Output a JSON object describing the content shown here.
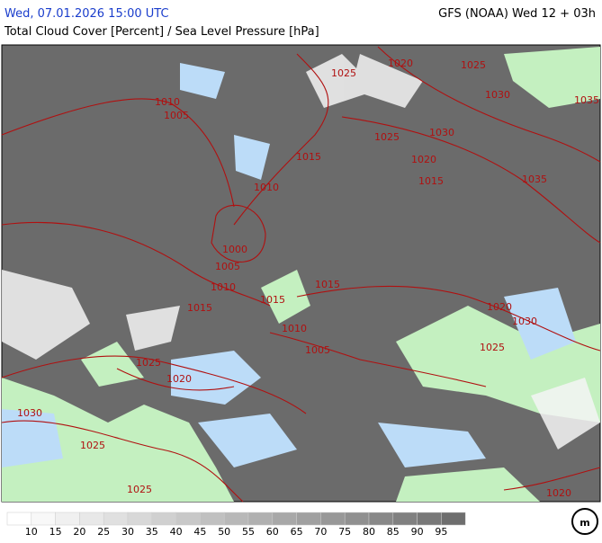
{
  "header": {
    "left": "Wed, 07.01.2026 15:00 UTC",
    "right": "GFS (NOAA) Wed 12 + 03h",
    "subtitle": "Total Cloud Cover [Percent] / Sea Level Pressure [hPa]"
  },
  "isobar_labels": [
    1025,
    1020,
    1025,
    1030,
    1035,
    1010,
    1005,
    1025,
    1030,
    1015,
    1020,
    1035,
    1010,
    1015,
    1000,
    1005,
    1010,
    1015,
    1015,
    1015,
    1020,
    1030,
    1010,
    1005,
    1025,
    1025,
    1020,
    1030,
    1025,
    1025,
    1020
  ],
  "legend": {
    "labels": [
      10,
      15,
      20,
      25,
      30,
      35,
      40,
      45,
      50,
      55,
      60,
      65,
      70,
      75,
      80,
      85,
      90,
      95
    ],
    "colors": [
      "#ffffff",
      "#f8f8f8",
      "#f0f0f0",
      "#e8e8e8",
      "#e0e0e0",
      "#d8d8d8",
      "#d0d0d0",
      "#c8c8c8",
      "#c0c0c0",
      "#b8b8b8",
      "#b0b0b0",
      "#a8a8a8",
      "#a0a0a0",
      "#989898",
      "#909090",
      "#888888",
      "#808080",
      "#787878",
      "#6e6e6e"
    ]
  }
}
